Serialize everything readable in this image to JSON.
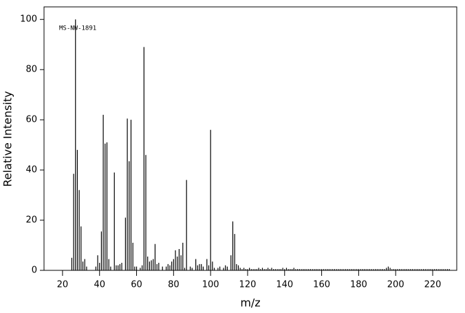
{
  "chart_data": {
    "type": "stem",
    "annotation": "MS-NW-1891",
    "x_label": "m/z",
    "y_label": "Relative Intensity",
    "xlim": [
      10,
      233
    ],
    "ylim": [
      0,
      105
    ],
    "xticks": [
      20,
      40,
      60,
      80,
      100,
      120,
      140,
      160,
      180,
      200,
      220
    ],
    "yticks": [
      0,
      20,
      40,
      60,
      80,
      100
    ],
    "color": "#000000",
    "x": [
      25,
      26,
      27,
      28,
      29,
      30,
      31,
      32,
      33,
      38,
      39,
      40,
      41,
      42,
      43,
      44,
      45,
      46,
      48,
      49,
      50,
      51,
      52,
      54,
      55,
      56,
      57,
      58,
      59,
      60,
      62,
      63,
      64,
      65,
      66,
      67,
      68,
      69,
      70,
      71,
      72,
      74,
      76,
      77,
      78,
      79,
      80,
      81,
      82,
      83,
      84,
      85,
      86,
      87,
      89,
      90,
      92,
      93,
      94,
      95,
      96,
      98,
      99,
      100,
      101,
      102,
      104,
      105,
      107,
      108,
      109,
      111,
      112,
      113,
      114,
      115,
      116,
      117,
      118,
      119,
      120,
      121,
      122,
      123,
      124,
      125,
      126,
      127,
      128,
      129,
      130,
      131,
      132,
      133,
      134,
      135,
      136,
      137,
      138,
      139,
      140,
      141,
      142,
      143,
      144,
      145,
      146,
      147,
      148,
      149,
      150,
      151,
      152,
      153,
      154,
      155,
      156,
      157,
      158,
      159,
      160,
      161,
      162,
      163,
      164,
      165,
      166,
      167,
      168,
      169,
      170,
      171,
      172,
      173,
      174,
      175,
      176,
      177,
      178,
      179,
      180,
      181,
      182,
      183,
      184,
      185,
      186,
      187,
      188,
      189,
      190,
      191,
      192,
      193,
      194,
      195,
      196,
      197,
      198,
      199,
      200,
      201,
      202,
      203,
      204,
      205,
      206,
      207,
      208,
      209,
      210,
      211,
      212,
      213,
      214,
      215,
      216,
      217,
      218,
      219,
      220,
      221,
      222,
      223,
      224,
      225,
      226,
      227,
      228,
      229
    ],
    "values": [
      5,
      38.5,
      100,
      48,
      32,
      17.5,
      3.5,
      4.5,
      1.5,
      1.5,
      6,
      3,
      15.5,
      62,
      50.5,
      51,
      4.5,
      1.5,
      39,
      2,
      2,
      2.5,
      3,
      21,
      60.5,
      43.5,
      60,
      11,
      1.5,
      1.5,
      1,
      2,
      89,
      46,
      5.5,
      3.5,
      4,
      4.5,
      10.5,
      2.5,
      3,
      1.5,
      1.5,
      2.5,
      2,
      3.5,
      4.5,
      8,
      5.5,
      8.5,
      6,
      11,
      1,
      36,
      1.5,
      1,
      4.5,
      2,
      2.5,
      2.5,
      1.5,
      4.5,
      2,
      56,
      3.5,
      1,
      1,
      1.5,
      1,
      2,
      1.5,
      6,
      19.5,
      14.5,
      2.5,
      2,
      1,
      0.5,
      1,
      0.5,
      0.5,
      1,
      0.5,
      0.5,
      0.5,
      0.5,
      1,
      0.5,
      1,
      0.5,
      0.5,
      1,
      0.5,
      1,
      0.5,
      0.5,
      0.5,
      0.5,
      0.5,
      1,
      0.5,
      1,
      0.5,
      0.5,
      0.5,
      1,
      0.5,
      0.5,
      0.5,
      0.5,
      0.5,
      0.5,
      0.5,
      0.5,
      0.5,
      0.5,
      0.5,
      0.5,
      0.5,
      0.5,
      0.5,
      0.5,
      0.5,
      0.5,
      0.5,
      0.5,
      0.5,
      0.5,
      0.5,
      0.5,
      0.5,
      0.5,
      0.5,
      0.5,
      0.5,
      0.5,
      0.5,
      0.5,
      0.5,
      0.5,
      0.5,
      0.5,
      0.5,
      0.5,
      0.5,
      0.5,
      0.5,
      0.5,
      0.5,
      0.5,
      0.5,
      0.5,
      0.5,
      0.5,
      0.5,
      1,
      1.5,
      1,
      0.5,
      0.5,
      0.5,
      0.5,
      0.5,
      0.5,
      0.5,
      0.5,
      0.5,
      0.5,
      0.5,
      0.5,
      0.5,
      0.5,
      0.5,
      0.5,
      0.5,
      0.5,
      0.5,
      0.5,
      0.5,
      0.5,
      0.5,
      0.5,
      0.5,
      0.5,
      0.5,
      0.5,
      0.5,
      0.5,
      0.5,
      0.5
    ]
  }
}
